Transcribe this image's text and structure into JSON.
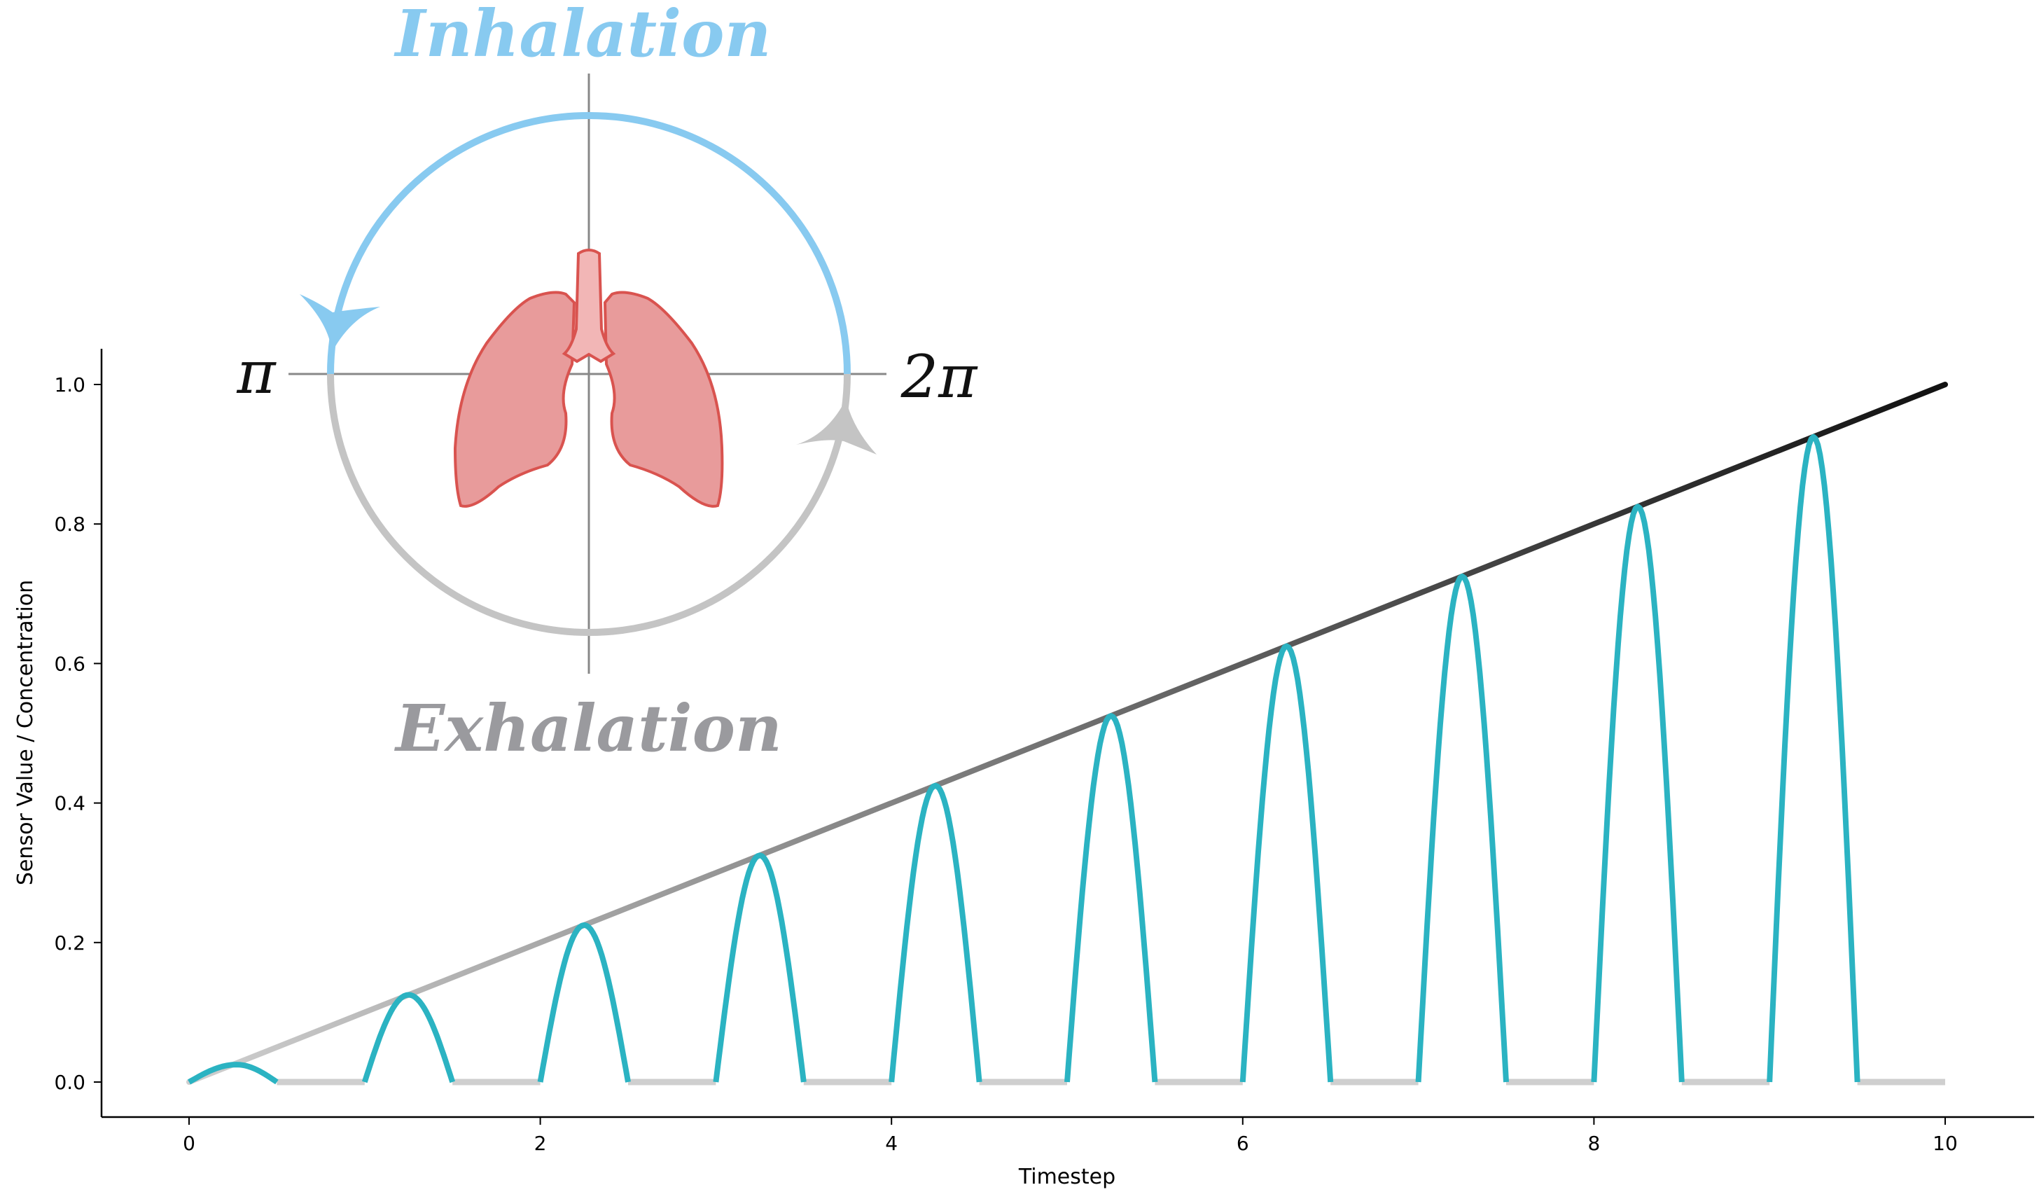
{
  "chart_data": {
    "type": "line",
    "title": "",
    "xlabel": "Timestep",
    "ylabel": "Sensor Value / Concentration",
    "xlim": [
      -0.5,
      10.5
    ],
    "ylim": [
      -0.05,
      1.05
    ],
    "xticks": [
      "0",
      "2",
      "4",
      "6",
      "8",
      "10"
    ],
    "yticks": [
      "0.0",
      "0.2",
      "0.4",
      "0.6",
      "0.8",
      "1.0"
    ],
    "grid": false,
    "legend": "none",
    "series": [
      {
        "style": "gradient line from light gray to black",
        "x": [
          0,
          10
        ],
        "y": [
          0.0,
          1.0
        ]
      },
      {
        "style": "teal curve active during inhalation, light gray flat during exhalation",
        "peaks_x": [
          0.27,
          1.25,
          2.25,
          3.25,
          4.25,
          5.25,
          6.25,
          7.25,
          8.25,
          9.25
        ],
        "peaks_y": [
          0.025,
          0.125,
          0.225,
          0.325,
          0.425,
          0.525,
          0.625,
          0.725,
          0.825,
          0.925
        ],
        "active_intervals": [
          [
            0,
            0.5
          ],
          [
            1,
            1.5
          ],
          [
            2,
            2.5
          ],
          [
            3,
            3.5
          ],
          [
            4,
            4.5
          ],
          [
            5,
            5.5
          ],
          [
            6,
            6.5
          ],
          [
            7,
            7.5
          ],
          [
            8,
            8.5
          ],
          [
            9,
            9.5
          ]
        ],
        "flat_intervals": [
          [
            0.5,
            1
          ],
          [
            1.5,
            2
          ],
          [
            2.5,
            3
          ],
          [
            3.5,
            4
          ],
          [
            4.5,
            5
          ],
          [
            5.5,
            6
          ],
          [
            6.5,
            7
          ],
          [
            7.5,
            8
          ],
          [
            8.5,
            9
          ],
          [
            9.5,
            10
          ]
        ]
      }
    ]
  },
  "inset": {
    "top_label": "Inhalation",
    "bottom_label": "Exhalation",
    "left_label": "π",
    "right_label": "2π",
    "icon": "lungs-icon"
  },
  "colors": {
    "teal": "#2bb3c2",
    "inhale_blue": "#88caf0",
    "exhale_gray": "#c4c4c4",
    "exhale_text": "#9a9a9e",
    "flat_gray": "#cfcfcf",
    "lung_fill": "#e89b9b",
    "lung_stroke": "#d9534f",
    "trachea_fill": "#f2b6b6"
  }
}
